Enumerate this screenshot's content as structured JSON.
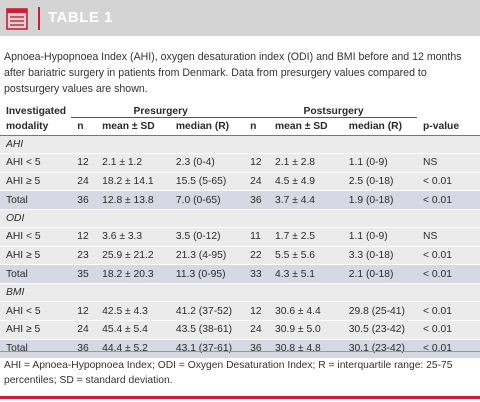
{
  "header": {
    "title": "TABLE 1"
  },
  "caption": "Apnoea-Hypopnoea Index (AHI), oxygen desaturation index (ODI) and BMI before and 12 months after bariatric surgery in patients from Denmark. Data from presurgery values compared to postsurgery values are shown.",
  "table": {
    "col_modality": "Investigated modality",
    "groups": {
      "pre": "Presurgery",
      "post": "Postsurgery"
    },
    "cols": {
      "n": "n",
      "mean": "mean ± SD",
      "median": "median (R)",
      "p": "p-value"
    },
    "sections": [
      {
        "name": "AHI",
        "rows": [
          {
            "label": "AHI < 5",
            "pre_n": "12",
            "pre_mean": "2.1 ± 1.2",
            "pre_med": "2.3 (0-4)",
            "post_n": "12",
            "post_mean": "2.1 ± 2.8",
            "post_med": "1.1 (0-9)",
            "p": "NS"
          },
          {
            "label": "AHI ≥ 5",
            "pre_n": "24",
            "pre_mean": "18.2 ± 14.1",
            "pre_med": "15.5 (5-65)",
            "post_n": "24",
            "post_mean": "4.5 ± 4.9",
            "post_med": "2.5 (0-18)",
            "p": "< 0.01"
          },
          {
            "label": "Total",
            "pre_n": "36",
            "pre_mean": "12.8 ± 13.8",
            "pre_med": "7.0 (0-65)",
            "post_n": "36",
            "post_mean": "3.7 ± 4.4",
            "post_med": "1.9 (0-18)",
            "p": "< 0.01"
          }
        ]
      },
      {
        "name": "ODI",
        "rows": [
          {
            "label": "AHI < 5",
            "pre_n": "12",
            "pre_mean": "3.6 ± 3.3",
            "pre_med": "3.5 (0-12)",
            "post_n": "11",
            "post_mean": "1.7 ± 2.5",
            "post_med": "1.1 (0-9)",
            "p": "NS"
          },
          {
            "label": "AHI ≥ 5",
            "pre_n": "23",
            "pre_mean": "25.9 ± 21.2",
            "pre_med": "21.3 (4-95)",
            "post_n": "22",
            "post_mean": "5.5 ± 5.6",
            "post_med": "3.3 (0-18)",
            "p": "< 0.01"
          },
          {
            "label": "Total",
            "pre_n": "35",
            "pre_mean": "18.2 ± 20.3",
            "pre_med": "11.3 (0-95)",
            "post_n": "33",
            "post_mean": "4.3 ± 5.1",
            "post_med": "2.1 (0-18)",
            "p": "< 0.01"
          }
        ]
      },
      {
        "name": "BMI",
        "rows": [
          {
            "label": "AHI < 5",
            "pre_n": "12",
            "pre_mean": "42.5 ± 4.3",
            "pre_med": "41.2 (37-52)",
            "post_n": "12",
            "post_mean": "30.6 ± 4.4",
            "post_med": "29.8 (25-41)",
            "p": "< 0.01"
          },
          {
            "label": "AHI ≥ 5",
            "pre_n": "24",
            "pre_mean": "45.4 ± 5.4",
            "pre_med": "43.5 (38-61)",
            "post_n": "24",
            "post_mean": "30.9 ± 5.0",
            "post_med": "30.5 (23-42)",
            "p": "< 0.01"
          },
          {
            "label": "Total",
            "pre_n": "36",
            "pre_mean": "44.4 ± 5.2",
            "pre_med": "43.1 (37-61)",
            "post_n": "36",
            "post_mean": "30.8 ± 4.8",
            "post_med": "30.1 (23-42)",
            "p": "< 0.01"
          }
        ]
      }
    ]
  },
  "footnote": "AHI = Apnoea-Hypopnoea Index; ODI = Oxygen Desaturation Index; R = interquartile range: 25-75 percentiles; SD = standard deviation.",
  "colors": {
    "header_bg": "#d4d4d4",
    "accent": "#cc1e3a",
    "row_bg": "#ebebeb",
    "total_bg": "#d6d9e3"
  }
}
